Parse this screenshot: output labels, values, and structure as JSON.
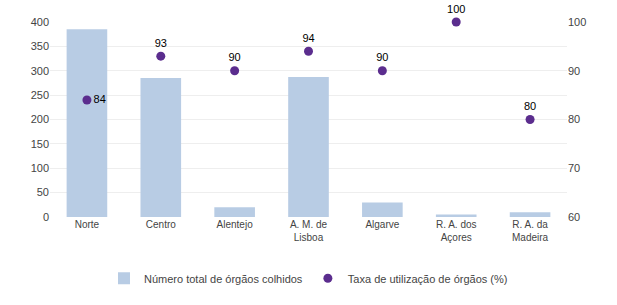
{
  "chart_data": {
    "type": "bar",
    "categories": [
      "Norte",
      "Centro",
      "Alentejo",
      "A. M. de\nLisboa",
      "Algarve",
      "R. A. dos\nAçores",
      "R. A. da\nMadeira"
    ],
    "series": [
      {
        "name": "Número total de órgãos colhidos",
        "type": "bar",
        "color": "#b8cce4",
        "values": [
          385,
          285,
          20,
          287,
          30,
          5,
          10
        ]
      },
      {
        "name": "Taxa de utilização de órgãos (%)",
        "type": "scatter",
        "marker": "circle",
        "axis": "y2",
        "color": "#5b2d8e",
        "data_labels": true,
        "values": [
          84,
          93,
          90,
          94,
          90,
          100,
          80
        ]
      }
    ],
    "ylim": [
      0,
      400
    ],
    "yticks": [
      0,
      50,
      100,
      150,
      200,
      250,
      300,
      350,
      400
    ],
    "y2lim": [
      60,
      100
    ],
    "y2ticks": [
      60,
      70,
      80,
      90,
      100
    ],
    "grid": true,
    "legend": "bottom"
  }
}
